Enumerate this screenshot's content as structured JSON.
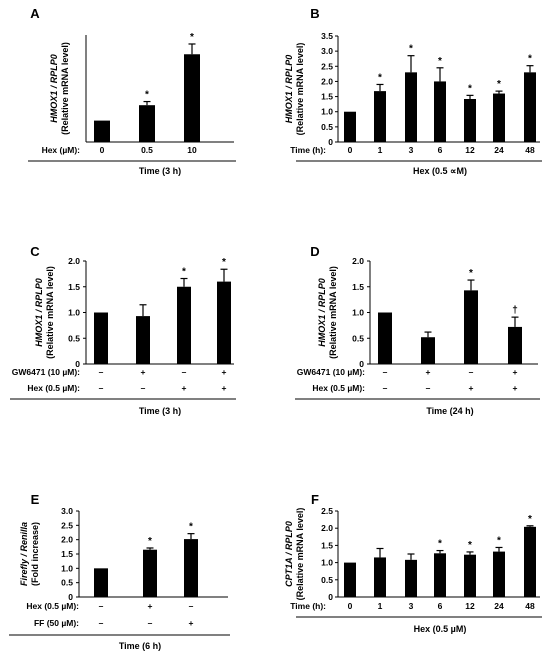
{
  "chart_data": [
    {
      "panel": "A",
      "type": "bar",
      "ylabel_gene": "HMOX1 / RPLP0",
      "ylabel_unit": "(Relative mRNA level)",
      "ylim": [
        0,
        5
      ],
      "yticks": [],
      "row_labels": [
        "Hex (µM):"
      ],
      "columns": [
        [
          "0"
        ],
        [
          "0.5"
        ],
        [
          "10"
        ]
      ],
      "values": [
        1.0,
        1.72,
        4.1
      ],
      "errors": [
        0,
        0.17,
        0.48
      ],
      "marks": [
        "",
        "*",
        "*"
      ],
      "footer": "Time (3 h)"
    },
    {
      "panel": "B",
      "type": "bar",
      "ylabel_gene": "HMOX1 / RPLP0",
      "ylabel_unit": "(Relative mRNA level)",
      "ylim": [
        0,
        3.5
      ],
      "yticks": [
        "0",
        "0.5",
        "1.0",
        "1.5",
        "2.0",
        "2.5",
        "3.0",
        "3.5"
      ],
      "row_labels": [
        "Time (h):"
      ],
      "columns": [
        [
          "0"
        ],
        [
          "1"
        ],
        [
          "3"
        ],
        [
          "6"
        ],
        [
          "12"
        ],
        [
          "24"
        ],
        [
          "48"
        ]
      ],
      "values": [
        1.0,
        1.68,
        2.3,
        2.0,
        1.42,
        1.6,
        2.3
      ],
      "errors": [
        0,
        0.22,
        0.55,
        0.45,
        0.12,
        0.08,
        0.22
      ],
      "marks": [
        "",
        "*",
        "*",
        "*",
        "*",
        "*",
        "*"
      ],
      "footer": "Hex (0.5 ∝M)"
    },
    {
      "panel": "C",
      "type": "bar",
      "ylabel_gene": "HMOX1 / RPLP0",
      "ylabel_unit": "(Relative mRNA level)",
      "ylim": [
        0,
        2.0
      ],
      "yticks": [
        "0",
        "0.5",
        "1.0",
        "1.5",
        "2.0"
      ],
      "row_labels": [
        "GW6471 (10 µM):",
        "Hex (0.5 µM):"
      ],
      "columns": [
        [
          "–",
          "–"
        ],
        [
          "+",
          "–"
        ],
        [
          "–",
          "+"
        ],
        [
          "+",
          "+"
        ]
      ],
      "values": [
        1.0,
        0.93,
        1.5,
        1.6
      ],
      "errors": [
        0,
        0.22,
        0.16,
        0.24
      ],
      "marks": [
        "",
        "",
        "*",
        "*"
      ],
      "footer": "Time  (3 h)"
    },
    {
      "panel": "D",
      "type": "bar",
      "ylabel_gene": "HMOX1 / RPLP0",
      "ylabel_unit": "(Relative mRNA level)",
      "ylim": [
        0,
        2.0
      ],
      "yticks": [
        "0",
        "0.5",
        "1.0",
        "1.5",
        "2.0"
      ],
      "row_labels": [
        "GW6471 (10 µM):",
        "Hex (0.5 µM):"
      ],
      "columns": [
        [
          "–",
          "–"
        ],
        [
          "+",
          "–"
        ],
        [
          "–",
          "+"
        ],
        [
          "+",
          "+"
        ]
      ],
      "values": [
        1.0,
        0.52,
        1.43,
        0.72
      ],
      "errors": [
        0,
        0.1,
        0.2,
        0.19
      ],
      "marks": [
        "",
        "",
        "*",
        "†"
      ],
      "footer": "Time  (24 h)"
    },
    {
      "panel": "E",
      "type": "bar",
      "ylabel_gene": "Firefly / Renilla",
      "ylabel_unit": "(Fold increase)",
      "ylim": [
        0,
        3.0
      ],
      "yticks": [
        "0",
        "0.5",
        "1.0",
        "1.5",
        "2.0",
        "2.5",
        "3.0"
      ],
      "row_labels": [
        "Hex (0.5 µM):",
        "FF (50 µM):"
      ],
      "columns": [
        [
          "–",
          "–"
        ],
        [
          "+",
          "–"
        ],
        [
          "–",
          "+"
        ]
      ],
      "values": [
        1.0,
        1.65,
        2.02
      ],
      "errors": [
        0,
        0.06,
        0.19
      ],
      "marks": [
        "",
        "*",
        "*"
      ],
      "footer": "Time (6 h)"
    },
    {
      "panel": "F",
      "type": "bar",
      "ylabel_gene": "CPT1A / RPLP0",
      "ylabel_unit": "(Relative mRNA level)",
      "ylim": [
        0,
        2.5
      ],
      "yticks": [
        "0",
        "0.5",
        "1.0",
        "1.5",
        "2.0",
        "2.5"
      ],
      "row_labels": [
        "Time (h):"
      ],
      "columns": [
        [
          "0"
        ],
        [
          "1"
        ],
        [
          "3"
        ],
        [
          "6"
        ],
        [
          "12"
        ],
        [
          "24"
        ],
        [
          "48"
        ]
      ],
      "values": [
        1.0,
        1.15,
        1.08,
        1.27,
        1.23,
        1.32,
        2.04
      ],
      "errors": [
        0,
        0.26,
        0.17,
        0.08,
        0.08,
        0.12,
        0.03
      ],
      "marks": [
        "",
        "",
        "",
        "*",
        "*",
        "*",
        "*"
      ],
      "footer": "Hex (0.5 µM)"
    }
  ]
}
